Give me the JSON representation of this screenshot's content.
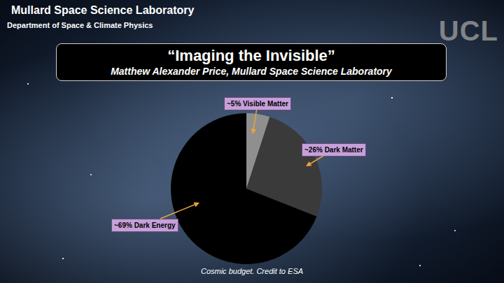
{
  "header": {
    "lab": "Mullard Space Science Laboratory",
    "department": "Department of Space & Climate Physics",
    "logo": "UCL"
  },
  "chart_data": {
    "type": "pie",
    "title": "“Imaging the Invisible”",
    "subtitle": "Matthew Alexander Price, Mullard Space Science Laboratory",
    "values": [
      5,
      26,
      69
    ],
    "value_labels": [
      "~5% Visible Matter",
      "~26% Dark Matter",
      "~69% Dark Energy"
    ],
    "colors": [
      "#8f8f8f",
      "#3a3a3a",
      "#000000"
    ],
    "data_labels": true,
    "annotations": [
      "Cosmic budget. Credit to ESA"
    ]
  }
}
